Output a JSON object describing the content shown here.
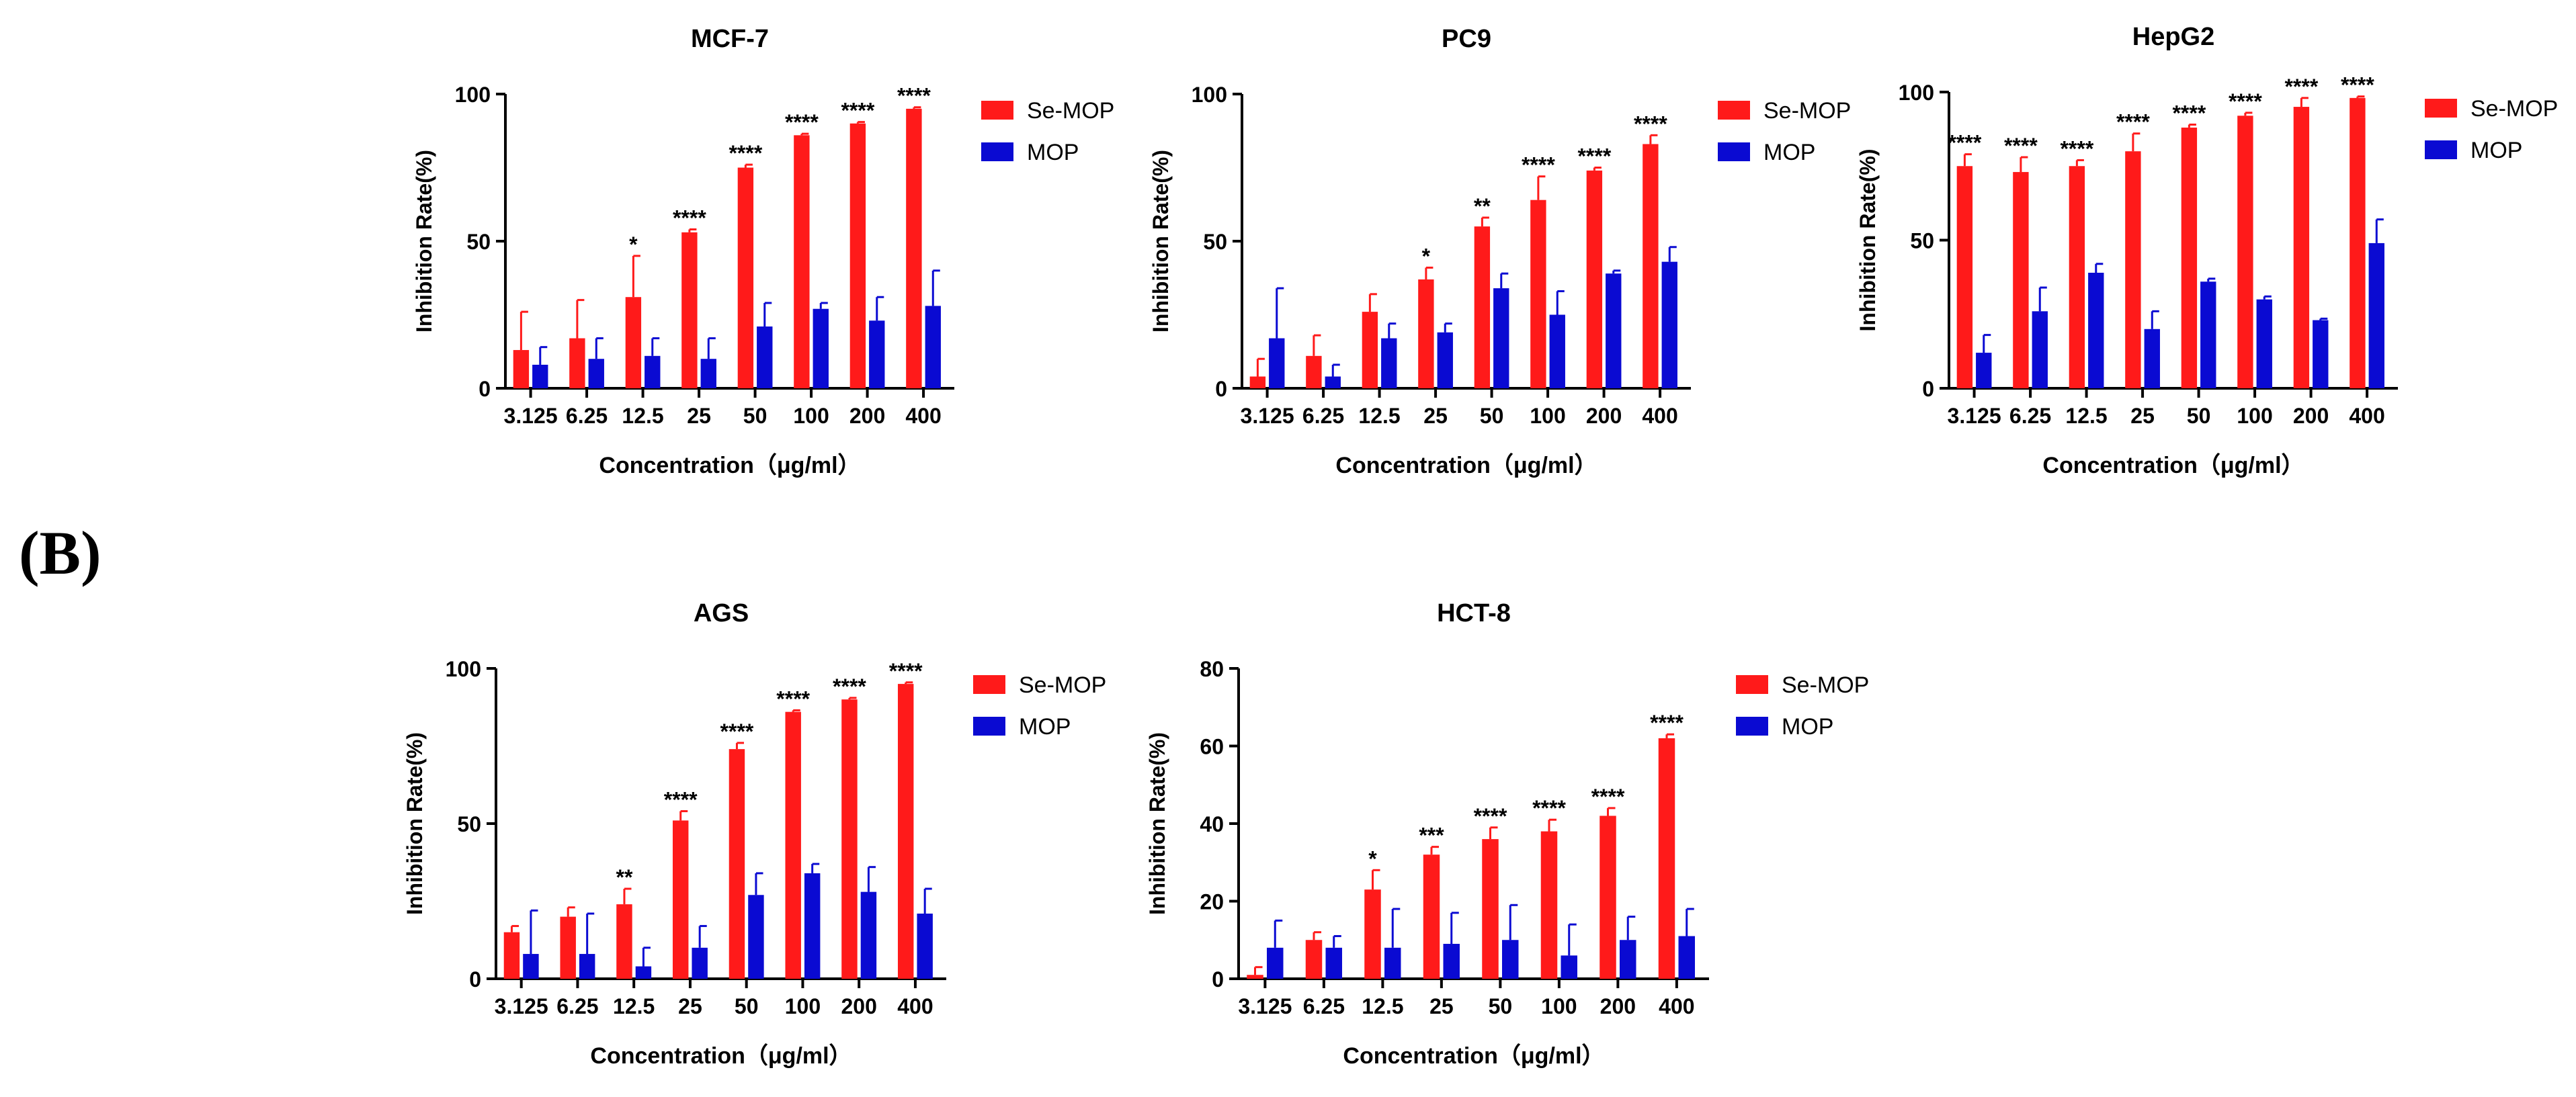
{
  "panel_label": "(B)",
  "colors": {
    "se_mop": "#ff1a1a",
    "mop": "#0a0ad2",
    "axis": "#000000"
  },
  "chart_data": [
    {
      "type": "bar",
      "title": "MCF-7",
      "xlabel": "Concentration（μg/ml）",
      "ylabel": "Inhibition Rate(%)",
      "ylim": [
        0,
        100
      ],
      "yticks": [
        0,
        50,
        100
      ],
      "categories": [
        "3.125",
        "6.25",
        "12.5",
        "25",
        "50",
        "100",
        "200",
        "400"
      ],
      "series": [
        {
          "name": "Se-MOP",
          "values": [
            13,
            17,
            31,
            53,
            75,
            86,
            90,
            95
          ],
          "errors": [
            13,
            13,
            14,
            1,
            1,
            0.5,
            0.5,
            0.5
          ]
        },
        {
          "name": "MOP",
          "values": [
            8,
            10,
            11,
            10,
            21,
            27,
            23,
            28
          ],
          "errors": [
            6,
            7,
            6,
            7,
            8,
            2,
            8,
            12
          ]
        }
      ],
      "significance": [
        "",
        "",
        "*",
        "****",
        "****",
        "****",
        "****",
        "****"
      ],
      "legend_position": "top-right"
    },
    {
      "type": "bar",
      "title": "PC9",
      "xlabel": "Concentration（μg/ml）",
      "ylabel": "Inhibition Rate(%)",
      "ylim": [
        0,
        100
      ],
      "yticks": [
        0,
        50,
        100
      ],
      "categories": [
        "3.125",
        "6.25",
        "12.5",
        "25",
        "50",
        "100",
        "200",
        "400"
      ],
      "series": [
        {
          "name": "Se-MOP",
          "values": [
            4,
            11,
            26,
            37,
            55,
            64,
            74,
            83
          ],
          "errors": [
            6,
            7,
            6,
            4,
            3,
            8,
            1,
            3
          ]
        },
        {
          "name": "MOP",
          "values": [
            17,
            4,
            17,
            19,
            34,
            25,
            39,
            43
          ],
          "errors": [
            17,
            4,
            5,
            3,
            5,
            8,
            1,
            5
          ]
        }
      ],
      "significance": [
        "",
        "",
        "",
        "*",
        "**",
        "****",
        "****",
        "****"
      ],
      "legend_position": "top-right"
    },
    {
      "type": "bar",
      "title": "HepG2",
      "xlabel": "Concentration（μg/ml）",
      "ylabel": "Inhibition Rate(%)",
      "ylim": [
        0,
        100
      ],
      "yticks": [
        0,
        50,
        100
      ],
      "categories": [
        "3.125",
        "6.25",
        "12.5",
        "25",
        "50",
        "100",
        "200",
        "400"
      ],
      "series": [
        {
          "name": "Se-MOP",
          "values": [
            75,
            73,
            75,
            80,
            88,
            92,
            95,
            98
          ],
          "errors": [
            4,
            5,
            2,
            6,
            1,
            1,
            3,
            0.5
          ]
        },
        {
          "name": "MOP",
          "values": [
            12,
            26,
            39,
            20,
            36,
            30,
            23,
            49
          ],
          "errors": [
            6,
            8,
            3,
            6,
            1,
            1,
            0.5,
            8
          ]
        }
      ],
      "significance": [
        "****",
        "****",
        "****",
        "****",
        "****",
        "****",
        "****",
        "****"
      ],
      "legend_position": "top-right"
    },
    {
      "type": "bar",
      "title": "AGS",
      "xlabel": "Concentration（μg/ml）",
      "ylabel": "Inhibition Rate(%)",
      "ylim": [
        0,
        100
      ],
      "yticks": [
        0,
        50,
        100
      ],
      "categories": [
        "3.125",
        "6.25",
        "12.5",
        "25",
        "50",
        "100",
        "200",
        "400"
      ],
      "series": [
        {
          "name": "Se-MOP",
          "values": [
            15,
            20,
            24,
            51,
            74,
            86,
            90,
            95
          ],
          "errors": [
            2,
            3,
            5,
            3,
            2,
            0.5,
            0.5,
            0.5
          ]
        },
        {
          "name": "MOP",
          "values": [
            8,
            8,
            4,
            10,
            27,
            34,
            28,
            21
          ],
          "errors": [
            14,
            13,
            6,
            7,
            7,
            3,
            8,
            8
          ]
        }
      ],
      "significance": [
        "",
        "",
        "**",
        "****",
        "****",
        "****",
        "****",
        "****"
      ],
      "legend_position": "top-right"
    },
    {
      "type": "bar",
      "title": "HCT-8",
      "xlabel": "Concentration（μg/ml）",
      "ylabel": "Inhibition Rate(%)",
      "ylim": [
        0,
        80
      ],
      "yticks": [
        0,
        20,
        40,
        60,
        80
      ],
      "categories": [
        "3.125",
        "6.25",
        "12.5",
        "25",
        "50",
        "100",
        "200",
        "400"
      ],
      "series": [
        {
          "name": "Se-MOP",
          "values": [
            1,
            10,
            23,
            32,
            36,
            38,
            42,
            62
          ],
          "errors": [
            2,
            2,
            5,
            2,
            3,
            3,
            2,
            1
          ]
        },
        {
          "name": "MOP",
          "values": [
            8,
            8,
            8,
            9,
            10,
            6,
            10,
            11
          ],
          "errors": [
            7,
            3,
            10,
            8,
            9,
            8,
            6,
            7
          ]
        }
      ],
      "significance": [
        "",
        "",
        "*",
        "***",
        "****",
        "****",
        "****",
        "****"
      ],
      "legend_position": "top-right"
    }
  ]
}
